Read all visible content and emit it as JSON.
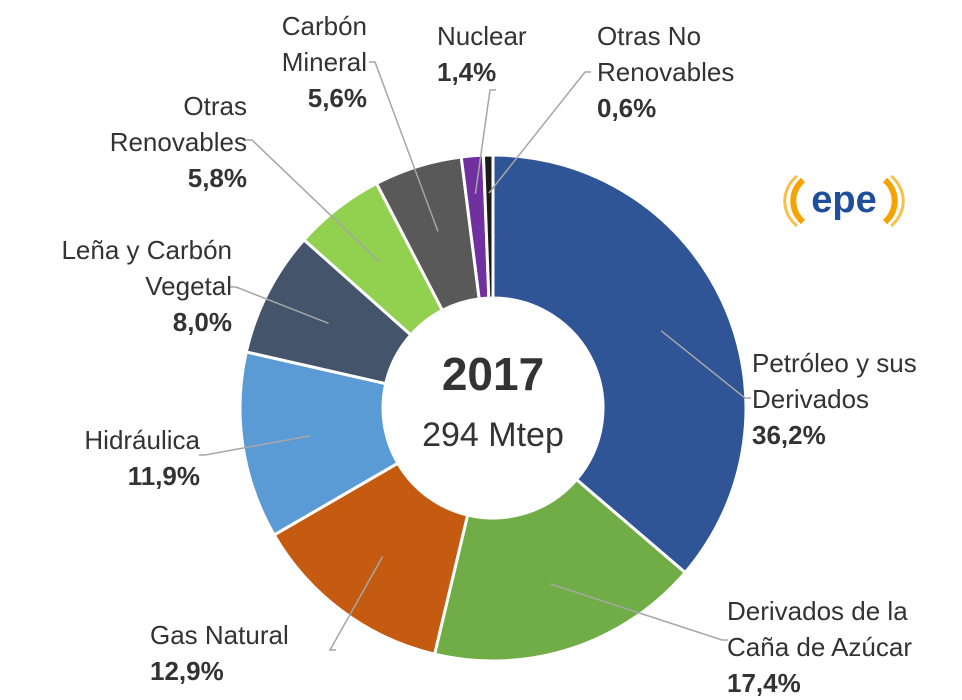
{
  "chart_data": {
    "type": "donut",
    "center_title": "2017",
    "center_subtitle": "294 Mtep",
    "logo": "epe",
    "categories": [
      "Petróleo y sus Derivados",
      "Derivados de la Caña de Azúcar",
      "Gas Natural",
      "Hidráulica",
      "Leña y Carbón Vegetal",
      "Otras Renovables",
      "Carbón Mineral",
      "Nuclear",
      "Otras No Renovables"
    ],
    "values": [
      36.2,
      17.4,
      12.9,
      11.9,
      8.0,
      5.8,
      5.6,
      1.4,
      0.6
    ],
    "value_labels": [
      "36,2%",
      "17,4%",
      "12,9%",
      "11,9%",
      "8,0%",
      "5,8%",
      "5,6%",
      "1,4%",
      "0,6%"
    ],
    "colors": [
      "#2f5597",
      "#70ad47",
      "#c55a11",
      "#5b9bd5",
      "#44546a",
      "#92d050",
      "#595959",
      "#7030a0",
      "#1a1a1a"
    ]
  }
}
